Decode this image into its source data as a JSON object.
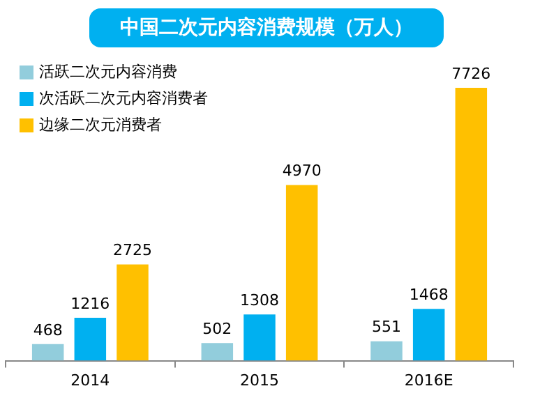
{
  "chart_data": {
    "type": "bar",
    "title": "中国二次元内容消费规模（万人）",
    "categories": [
      "2014",
      "2015",
      "2016E"
    ],
    "series": [
      {
        "name": "活跃二次元内容消费",
        "color": "#92cddc",
        "values": [
          468,
          502,
          551
        ]
      },
      {
        "name": "次活跃二次元内容消费者",
        "color": "#00b0f0",
        "values": [
          1216,
          1308,
          1468
        ]
      },
      {
        "name": "边缘二次元消费者",
        "color": "#ffc000",
        "values": [
          2725,
          4970,
          7726
        ]
      }
    ],
    "data_labels": true,
    "legend": "top left"
  }
}
